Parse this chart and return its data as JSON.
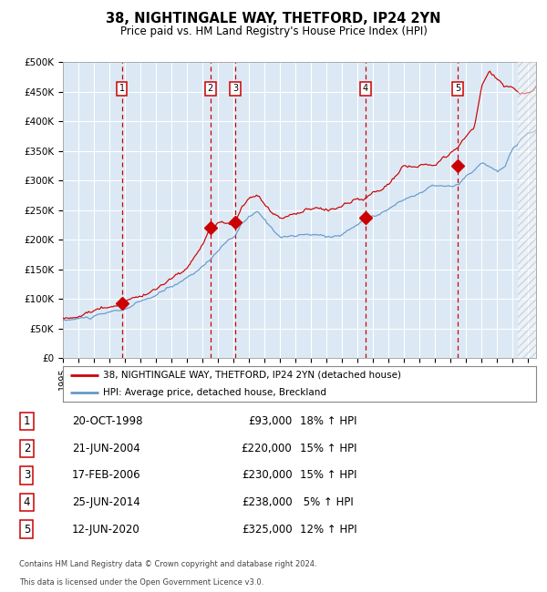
{
  "title": "38, NIGHTINGALE WAY, THETFORD, IP24 2YN",
  "subtitle": "Price paid vs. HM Land Registry's House Price Index (HPI)",
  "background_color": "#dce9f5",
  "grid_color": "#ffffff",
  "red_line_color": "#cc0000",
  "blue_line_color": "#6699cc",
  "sale_marker_color": "#cc0000",
  "vline_color": "#cc0000",
  "label_box_color": "#cc0000",
  "ylim": [
    0,
    500000
  ],
  "yticks": [
    0,
    50000,
    100000,
    150000,
    200000,
    250000,
    300000,
    350000,
    400000,
    450000,
    500000
  ],
  "ytick_labels": [
    "£0",
    "£50K",
    "£100K",
    "£150K",
    "£200K",
    "£250K",
    "£300K",
    "£350K",
    "£400K",
    "£450K",
    "£500K"
  ],
  "xlim_start": 1995.0,
  "xlim_end": 2025.5,
  "xticks": [
    1995,
    1996,
    1997,
    1998,
    1999,
    2000,
    2001,
    2002,
    2003,
    2004,
    2005,
    2006,
    2007,
    2008,
    2009,
    2010,
    2011,
    2012,
    2013,
    2014,
    2015,
    2016,
    2017,
    2018,
    2019,
    2020,
    2021,
    2022,
    2023,
    2024,
    2025
  ],
  "sales": [
    {
      "num": 1,
      "year": 1998.8,
      "price": 93000
    },
    {
      "num": 2,
      "year": 2004.5,
      "price": 220000
    },
    {
      "num": 3,
      "year": 2006.1,
      "price": 230000
    },
    {
      "num": 4,
      "year": 2014.5,
      "price": 238000
    },
    {
      "num": 5,
      "year": 2020.45,
      "price": 325000
    }
  ],
  "legend_red": "38, NIGHTINGALE WAY, THETFORD, IP24 2YN (detached house)",
  "legend_blue": "HPI: Average price, detached house, Breckland",
  "footer1": "Contains HM Land Registry data © Crown copyright and database right 2024.",
  "footer2": "This data is licensed under the Open Government Licence v3.0.",
  "table_rows": [
    {
      "num": 1,
      "date": "20-OCT-1998",
      "price": "£93,000",
      "pct": "18% ↑ HPI"
    },
    {
      "num": 2,
      "date": "21-JUN-2004",
      "price": "£220,000",
      "pct": "15% ↑ HPI"
    },
    {
      "num": 3,
      "date": "17-FEB-2006",
      "price": "£230,000",
      "pct": "15% ↑ HPI"
    },
    {
      "num": 4,
      "date": "25-JUN-2014",
      "price": "£238,000",
      "pct": " 5% ↑ HPI"
    },
    {
      "num": 5,
      "date": "12-JUN-2020",
      "price": "£325,000",
      "pct": "12% ↑ HPI"
    }
  ],
  "hpi_anchors_t": [
    1995,
    1997,
    1998,
    1999,
    2000,
    2001,
    2002,
    2003,
    2004,
    2004.5,
    2005,
    2006,
    2006.5,
    2007,
    2007.5,
    2008,
    2008.5,
    2009,
    2010,
    2011,
    2012,
    2013,
    2014,
    2014.5,
    2015,
    2016,
    2017,
    2018,
    2019,
    2020,
    2020.5,
    2021,
    2021.5,
    2022,
    2022.5,
    2023,
    2023.5,
    2024,
    2024.5,
    2025,
    2025.5
  ],
  "hpi_anchors_v": [
    63000,
    68000,
    72000,
    78000,
    88000,
    98000,
    112000,
    128000,
    150000,
    160000,
    178000,
    195000,
    215000,
    228000,
    235000,
    220000,
    205000,
    195000,
    196000,
    196000,
    193000,
    198000,
    215000,
    225000,
    232000,
    245000,
    260000,
    272000,
    283000,
    278000,
    280000,
    292000,
    300000,
    315000,
    310000,
    298000,
    305000,
    335000,
    350000,
    360000,
    365000
  ],
  "red_anchors_t": [
    1995,
    1996,
    1997,
    1998,
    1998.8,
    1999,
    2000,
    2001,
    2002,
    2003,
    2004,
    2004.5,
    2005,
    2006.1,
    2006.5,
    2007,
    2007.5,
    2008,
    2008.5,
    2009,
    2010,
    2011,
    2012,
    2013,
    2014,
    2014.5,
    2015,
    2016,
    2017,
    2018,
    2019,
    2020,
    2020.45,
    2021,
    2021.5,
    2022,
    2022.5,
    2023,
    2023.5,
    2024,
    2024.5,
    2025,
    2025.5
  ],
  "red_anchors_v": [
    68000,
    72000,
    78000,
    85000,
    93000,
    100000,
    110000,
    122000,
    138000,
    158000,
    195000,
    220000,
    228000,
    230000,
    255000,
    268000,
    272000,
    250000,
    232000,
    222000,
    225000,
    228000,
    225000,
    235000,
    242000,
    238000,
    248000,
    265000,
    285000,
    295000,
    298000,
    318000,
    325000,
    345000,
    360000,
    435000,
    455000,
    445000,
    430000,
    430000,
    415000,
    418000,
    425000
  ]
}
